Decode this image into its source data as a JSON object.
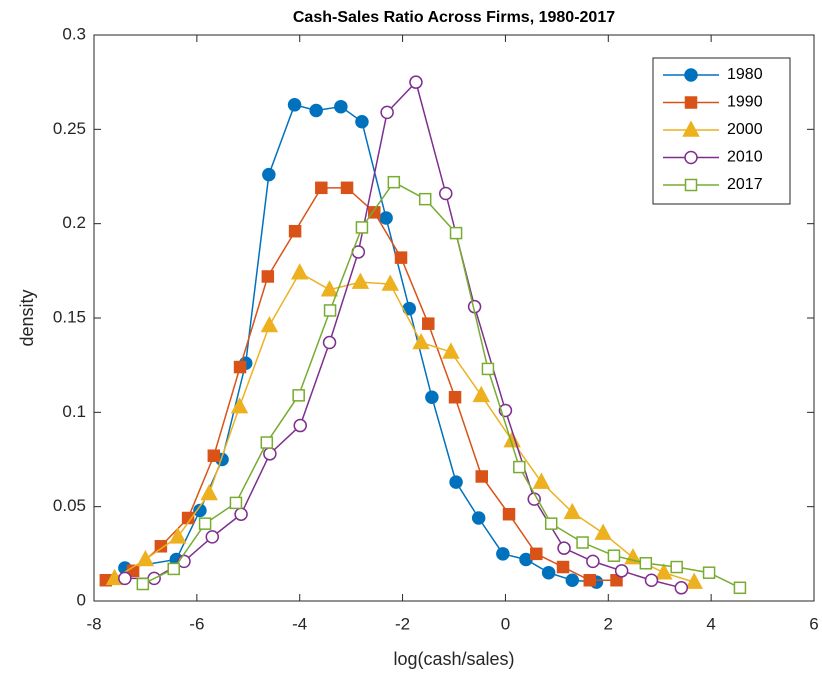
{
  "chart_data": {
    "type": "line",
    "title": "Cash-Sales Ratio Across Firms, 1980-2017",
    "xlabel": "log(cash/sales)",
    "ylabel": "density",
    "xlim": [
      -8,
      6
    ],
    "xticks": [
      -8,
      -6,
      -4,
      -2,
      0,
      2,
      4,
      6
    ],
    "ylim": [
      0,
      0.3
    ],
    "yticks": [
      0,
      0.05,
      0.1,
      0.15,
      0.2,
      0.25,
      0.3
    ],
    "legend": "upper-right",
    "series": [
      {
        "name": "1980",
        "color": "#0072BD",
        "marker": "circle",
        "filled": true,
        "x": [
          -7.4,
          -6.4,
          -5.94,
          -5.51,
          -5.05,
          -4.6,
          -4.1,
          -3.68,
          -3.2,
          -2.79,
          -2.32,
          -1.87,
          -1.43,
          -0.96,
          -0.52,
          -0.05,
          0.4,
          0.84,
          1.3,
          1.77
        ],
        "values": [
          0.0175,
          0.022,
          0.048,
          0.075,
          0.126,
          0.226,
          0.263,
          0.26,
          0.262,
          0.254,
          0.203,
          0.155,
          0.108,
          0.063,
          0.044,
          0.025,
          0.022,
          0.015,
          0.011,
          0.01
        ]
      },
      {
        "name": "1990",
        "color": "#D95319",
        "marker": "square",
        "filled": true,
        "x": [
          -7.77,
          -7.24,
          -6.7,
          -6.17,
          -5.67,
          -5.16,
          -4.62,
          -4.09,
          -3.58,
          -3.08,
          -2.55,
          -2.03,
          -1.5,
          -0.98,
          -0.46,
          0.07,
          0.6,
          1.12,
          1.64,
          2.16
        ],
        "values": [
          0.011,
          0.016,
          0.029,
          0.044,
          0.077,
          0.124,
          0.172,
          0.196,
          0.219,
          0.219,
          0.206,
          0.182,
          0.147,
          0.108,
          0.066,
          0.046,
          0.025,
          0.018,
          0.011,
          0.011
        ]
      },
      {
        "name": "2000",
        "color": "#EDB120",
        "marker": "triangle",
        "filled": true,
        "x": [
          -7.6,
          -7.0,
          -6.37,
          -5.76,
          -5.17,
          -4.59,
          -4.0,
          -3.42,
          -2.82,
          -2.24,
          -1.64,
          -1.06,
          -0.47,
          0.13,
          0.7,
          1.3,
          1.9,
          2.48,
          3.08,
          3.67
        ],
        "values": [
          0.012,
          0.022,
          0.034,
          0.057,
          0.103,
          0.146,
          0.174,
          0.165,
          0.169,
          0.168,
          0.137,
          0.132,
          0.109,
          0.085,
          0.063,
          0.047,
          0.036,
          0.023,
          0.015,
          0.01
        ]
      },
      {
        "name": "2010",
        "color": "#7E2F8E",
        "marker": "circle",
        "filled": false,
        "x": [
          -7.4,
          -6.83,
          -6.25,
          -5.7,
          -5.14,
          -4.58,
          -3.99,
          -3.42,
          -2.86,
          -2.3,
          -1.74,
          -1.16,
          -0.6,
          0.0,
          0.56,
          1.14,
          1.7,
          2.26,
          2.84,
          3.42
        ],
        "values": [
          0.012,
          0.012,
          0.021,
          0.034,
          0.046,
          0.078,
          0.093,
          0.137,
          0.185,
          0.259,
          0.275,
          0.216,
          0.156,
          0.101,
          0.054,
          0.028,
          0.021,
          0.016,
          0.011,
          0.007
        ]
      },
      {
        "name": "2017",
        "color": "#77AC30",
        "marker": "square",
        "filled": false,
        "x": [
          -7.05,
          -6.45,
          -5.84,
          -5.24,
          -4.64,
          -4.02,
          -3.41,
          -2.79,
          -2.17,
          -1.56,
          -0.96,
          -0.34,
          0.27,
          0.89,
          1.5,
          2.11,
          2.73,
          3.33,
          3.96,
          4.56
        ],
        "values": [
          0.009,
          0.017,
          0.041,
          0.052,
          0.084,
          0.109,
          0.154,
          0.198,
          0.222,
          0.213,
          0.195,
          0.123,
          0.071,
          0.041,
          0.031,
          0.024,
          0.02,
          0.018,
          0.015,
          0.007
        ]
      }
    ]
  }
}
